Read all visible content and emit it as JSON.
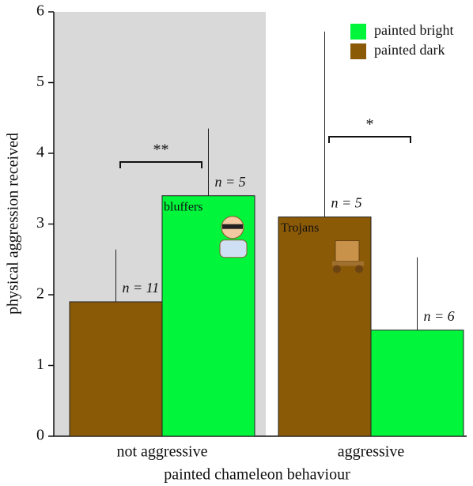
{
  "chart_data": {
    "type": "bar",
    "categories": [
      "not aggressive",
      "aggressive"
    ],
    "series": [
      {
        "name": "painted bright",
        "color": "#00f53b",
        "values": [
          3.4,
          1.5
        ],
        "errors": [
          0.95,
          1.03
        ],
        "n_labels": [
          "n = 5",
          "n = 6"
        ]
      },
      {
        "name": "painted dark",
        "color": "#8b5a07",
        "values": [
          1.9,
          3.1
        ],
        "errors": [
          0.74,
          2.62
        ],
        "n_labels": [
          "n = 11",
          "n = 5"
        ]
      }
    ],
    "significance": [
      "**",
      "*"
    ],
    "annotations": [
      "bluffers",
      "Trojans"
    ],
    "ylabel": "physical aggression received",
    "xlabel": "painted chameleon behaviour",
    "ylim": [
      0,
      6
    ],
    "yticks": [
      0,
      1,
      2,
      3,
      4,
      5,
      6
    ],
    "legend": "upper right"
  }
}
